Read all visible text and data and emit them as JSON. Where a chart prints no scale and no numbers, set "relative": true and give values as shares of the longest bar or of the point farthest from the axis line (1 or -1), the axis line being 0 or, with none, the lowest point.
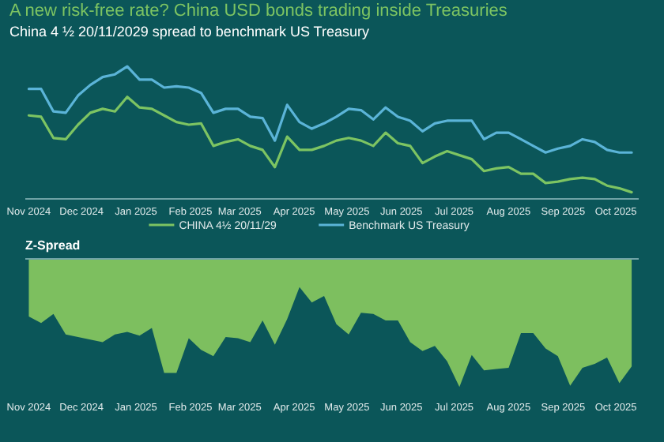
{
  "chart_data": [
    {
      "type": "line",
      "title": "A new risk-free rate? China USD bonds trading inside Treasuries",
      "subtitle": "China 4 ½ 20/11/2029 spread to benchmark US Treasury",
      "relative": true,
      "legend": "bottom",
      "x": [
        "2024-11-01",
        "2024-11-08",
        "2024-11-15",
        "2024-11-22",
        "2024-11-29",
        "2024-12-06",
        "2024-12-13",
        "2024-12-20",
        "2024-12-27",
        "2025-01-03",
        "2025-01-10",
        "2025-01-17",
        "2025-01-24",
        "2025-01-31",
        "2025-02-07",
        "2025-02-14",
        "2025-02-21",
        "2025-02-28",
        "2025-03-07",
        "2025-03-14",
        "2025-03-21",
        "2025-03-28",
        "2025-04-04",
        "2025-04-11",
        "2025-04-18",
        "2025-04-25",
        "2025-05-02",
        "2025-05-09",
        "2025-05-16",
        "2025-05-23",
        "2025-05-30",
        "2025-06-06",
        "2025-06-13",
        "2025-06-20",
        "2025-06-27",
        "2025-07-04",
        "2025-07-11",
        "2025-07-18",
        "2025-07-25",
        "2025-08-01",
        "2025-08-08",
        "2025-08-15",
        "2025-08-22",
        "2025-08-29",
        "2025-09-05",
        "2025-09-12",
        "2025-09-19",
        "2025-09-26",
        "2025-10-03",
        "2025-10-10"
      ],
      "xlim": [
        "2024-10-30",
        "2025-10-14"
      ],
      "xticks": [
        {
          "value": "2024-11-01",
          "label": "Nov 2024"
        },
        {
          "value": "2024-12-01",
          "label": "Dec 2024"
        },
        {
          "value": "2025-01-01",
          "label": "Jan 2025"
        },
        {
          "value": "2025-02-01",
          "label": "Feb 2025"
        },
        {
          "value": "2025-03-01",
          "label": "Mar 2025"
        },
        {
          "value": "2025-04-01",
          "label": "Apr 2025"
        },
        {
          "value": "2025-05-01",
          "label": "May 2025"
        },
        {
          "value": "2025-06-01",
          "label": "Jun 2025"
        },
        {
          "value": "2025-07-01",
          "label": "Jul 2025"
        },
        {
          "value": "2025-08-01",
          "label": "Aug 2025"
        },
        {
          "value": "2025-09-01",
          "label": "Sep 2025"
        },
        {
          "value": "2025-10-01",
          "label": "Oct 2025"
        }
      ],
      "series": [
        {
          "name": "CHINA 4½ 20/11/29",
          "color": "#7dc462",
          "values": [
            0.63,
            0.62,
            0.46,
            0.45,
            0.56,
            0.65,
            0.68,
            0.66,
            0.77,
            0.69,
            0.68,
            0.63,
            0.58,
            0.56,
            0.57,
            0.4,
            0.43,
            0.45,
            0.4,
            0.37,
            0.24,
            0.47,
            0.37,
            0.37,
            0.4,
            0.44,
            0.46,
            0.44,
            0.4,
            0.5,
            0.42,
            0.4,
            0.27,
            0.32,
            0.36,
            0.33,
            0.3,
            0.21,
            0.23,
            0.24,
            0.19,
            0.19,
            0.12,
            0.13,
            0.15,
            0.16,
            0.15,
            0.1,
            0.08,
            0.05
          ]
        },
        {
          "name": "Benchmark US Treasury",
          "color": "#5bb4d8",
          "values": [
            0.83,
            0.83,
            0.66,
            0.65,
            0.78,
            0.86,
            0.92,
            0.94,
            1,
            0.9,
            0.9,
            0.84,
            0.85,
            0.84,
            0.8,
            0.65,
            0.68,
            0.68,
            0.62,
            0.61,
            0.44,
            0.71,
            0.58,
            0.53,
            0.57,
            0.62,
            0.68,
            0.67,
            0.6,
            0.69,
            0.62,
            0.59,
            0.51,
            0.57,
            0.59,
            0.59,
            0.59,
            0.45,
            0.5,
            0.5,
            0.45,
            0.4,
            0.35,
            0.38,
            0.4,
            0.45,
            0.43,
            0.37,
            0.35,
            0.35
          ]
        }
      ]
    },
    {
      "type": "area",
      "title": "Z-Spread",
      "relative": true,
      "x": [
        "2024-11-01",
        "2024-11-08",
        "2024-11-15",
        "2024-11-22",
        "2024-11-29",
        "2024-12-06",
        "2024-12-13",
        "2024-12-20",
        "2024-12-27",
        "2025-01-03",
        "2025-01-10",
        "2025-01-17",
        "2025-01-24",
        "2025-01-31",
        "2025-02-07",
        "2025-02-14",
        "2025-02-21",
        "2025-02-28",
        "2025-03-07",
        "2025-03-14",
        "2025-03-21",
        "2025-03-28",
        "2025-04-04",
        "2025-04-11",
        "2025-04-18",
        "2025-04-25",
        "2025-05-02",
        "2025-05-09",
        "2025-05-16",
        "2025-05-23",
        "2025-05-30",
        "2025-06-06",
        "2025-06-13",
        "2025-06-20",
        "2025-06-27",
        "2025-07-04",
        "2025-07-11",
        "2025-07-18",
        "2025-07-25",
        "2025-08-01",
        "2025-08-08",
        "2025-08-15",
        "2025-08-22",
        "2025-08-29",
        "2025-09-05",
        "2025-09-12",
        "2025-09-19",
        "2025-09-26",
        "2025-10-03",
        "2025-10-10"
      ],
      "xlim": [
        "2024-10-30",
        "2025-10-14"
      ],
      "xticks": [
        {
          "value": "2024-11-01",
          "label": "Nov 2024"
        },
        {
          "value": "2024-12-01",
          "label": "Dec 2024"
        },
        {
          "value": "2025-01-01",
          "label": "Jan 2025"
        },
        {
          "value": "2025-02-01",
          "label": "Feb 2025"
        },
        {
          "value": "2025-03-01",
          "label": "Mar 2025"
        },
        {
          "value": "2025-04-01",
          "label": "Apr 2025"
        },
        {
          "value": "2025-05-01",
          "label": "May 2025"
        },
        {
          "value": "2025-06-01",
          "label": "Jun 2025"
        },
        {
          "value": "2025-07-01",
          "label": "Jul 2025"
        },
        {
          "value": "2025-08-01",
          "label": "Aug 2025"
        },
        {
          "value": "2025-09-01",
          "label": "Sep 2025"
        },
        {
          "value": "2025-10-01",
          "label": "Oct 2025"
        }
      ],
      "series": [
        {
          "color": "#7dbf5f",
          "values": [
            -0.45,
            -0.5,
            -0.43,
            -0.59,
            -0.61,
            -0.63,
            -0.65,
            -0.59,
            -0.57,
            -0.6,
            -0.54,
            -0.89,
            -0.89,
            -0.62,
            -0.71,
            -0.76,
            -0.61,
            -0.62,
            -0.65,
            -0.48,
            -0.67,
            -0.47,
            -0.22,
            -0.34,
            -0.29,
            -0.51,
            -0.59,
            -0.42,
            -0.43,
            -0.48,
            -0.48,
            -0.65,
            -0.72,
            -0.68,
            -0.8,
            -1,
            -0.75,
            -0.87,
            -0.86,
            -0.85,
            -0.58,
            -0.58,
            -0.7,
            -0.76,
            -0.99,
            -0.85,
            -0.82,
            -0.77,
            -0.97,
            -0.84
          ]
        }
      ]
    }
  ]
}
